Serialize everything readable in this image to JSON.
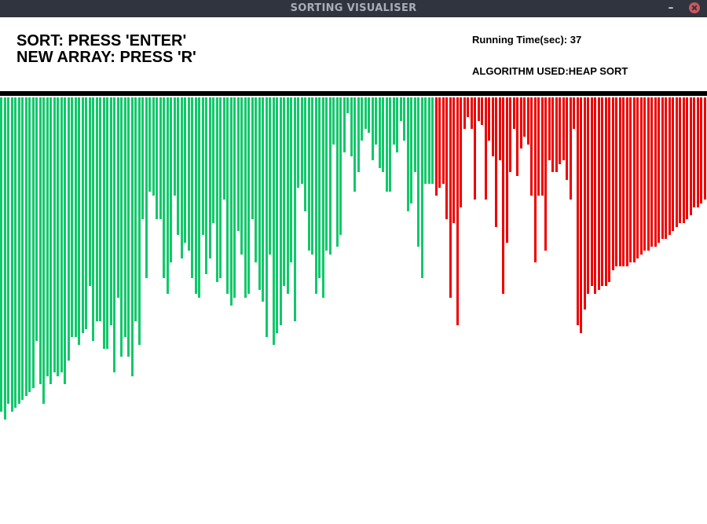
{
  "window": {
    "title": "SORTING VISUALISER",
    "minimize_icon": "minimize-icon",
    "close_icon": "close-icon",
    "close_color": "#cc575d"
  },
  "header": {
    "sort_instruction": "SORT: PRESS 'ENTER'",
    "new_array_instruction": "NEW ARRAY: PRESS 'R'",
    "running_time": "Running Time(sec): 37",
    "algorithm": "ALGORITHM USED:HEAP SORT"
  },
  "visualizer": {
    "colors": {
      "unsorted": "#10c86a",
      "sorted": "#ee0000"
    },
    "sorted_from_index": 123,
    "values": [
      400,
      410,
      390,
      400,
      395,
      390,
      385,
      380,
      375,
      370,
      310,
      365,
      390,
      355,
      365,
      350,
      355,
      350,
      365,
      335,
      305,
      305,
      315,
      300,
      295,
      240,
      310,
      285,
      285,
      320,
      320,
      290,
      350,
      255,
      330,
      305,
      330,
      355,
      285,
      315,
      155,
      230,
      120,
      125,
      155,
      155,
      230,
      250,
      210,
      125,
      175,
      205,
      185,
      195,
      230,
      250,
      255,
      175,
      225,
      205,
      160,
      235,
      230,
      130,
      250,
      265,
      255,
      170,
      200,
      255,
      250,
      155,
      210,
      245,
      260,
      305,
      200,
      315,
      300,
      290,
      240,
      250,
      210,
      285,
      115,
      110,
      145,
      195,
      200,
      250,
      230,
      255,
      195,
      200,
      60,
      190,
      175,
      70,
      20,
      75,
      120,
      95,
      55,
      40,
      45,
      80,
      60,
      90,
      95,
      120,
      120,
      60,
      70,
      30,
      55,
      145,
      135,
      95,
      190,
      230,
      110,
      110,
      110,
      125,
      115,
      110,
      155,
      255,
      160,
      290,
      140,
      40,
      25,
      40,
      130,
      30,
      35,
      130,
      55,
      75,
      165,
      80,
      250,
      185,
      95,
      40,
      100,
      65,
      50,
      60,
      125,
      210,
      125,
      125,
      195,
      80,
      95,
      95,
      85,
      80,
      105,
      130,
      40,
      290,
      300,
      270,
      250,
      240,
      250,
      245,
      240,
      240,
      235,
      220,
      215,
      215,
      215,
      215,
      210,
      210,
      205,
      200,
      195,
      195,
      190,
      190,
      185,
      180,
      180,
      175,
      170,
      165,
      160,
      160,
      155,
      150,
      140,
      140,
      135,
      130
    ]
  }
}
